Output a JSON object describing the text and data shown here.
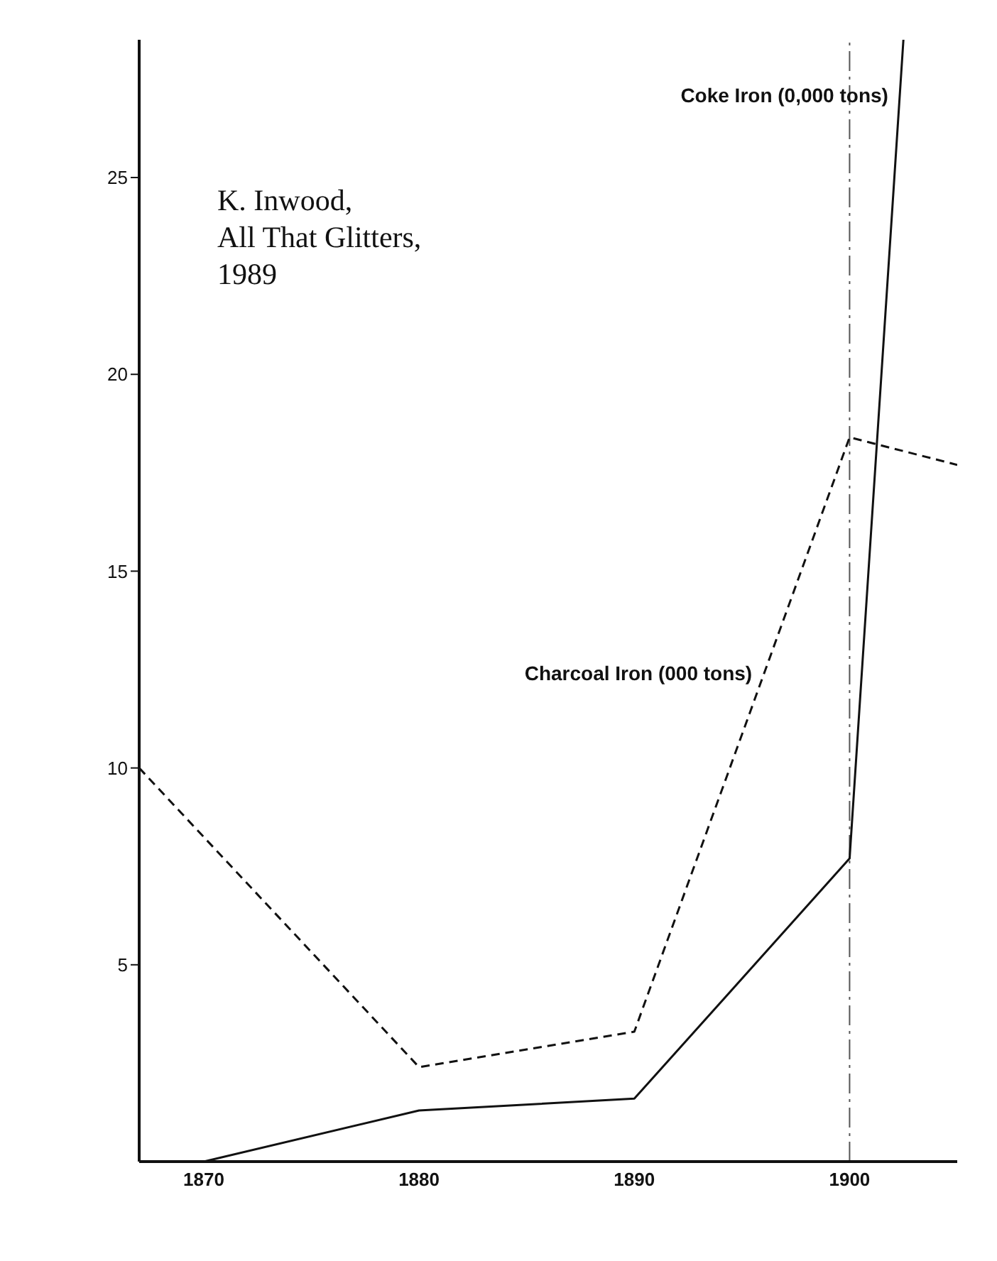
{
  "chart_data": {
    "type": "line",
    "xlim": [
      1867,
      1905
    ],
    "xticks": [
      1870,
      1880,
      1890,
      1900
    ],
    "ylim": [
      0,
      28.5
    ],
    "yticks": [
      5,
      10,
      15,
      20,
      25
    ],
    "grid": false,
    "legend": false,
    "marker": "none",
    "series": [
      {
        "name": "Charcoal Iron (000 tons)",
        "color": "#111111",
        "line_style": "dashed",
        "x": [
          1867,
          1880,
          1890,
          1900,
          1905
        ],
        "values": [
          10,
          2.4,
          3.3,
          18.4,
          17.7
        ]
      },
      {
        "name": "Coke Iron (0,000 tons)",
        "color": "#111111",
        "line_style": "solid",
        "x": [
          1870,
          1880,
          1890,
          1900,
          1902.5
        ],
        "values": [
          0,
          1.3,
          1.6,
          7.7,
          28.5
        ]
      }
    ],
    "ref_lines": [
      {
        "axis": "x",
        "value": 1900,
        "line_style": "dashed",
        "color": "#555555"
      }
    ],
    "annotations": [
      "K. Inwood,\nAll That Glitters,\n1989"
    ]
  }
}
